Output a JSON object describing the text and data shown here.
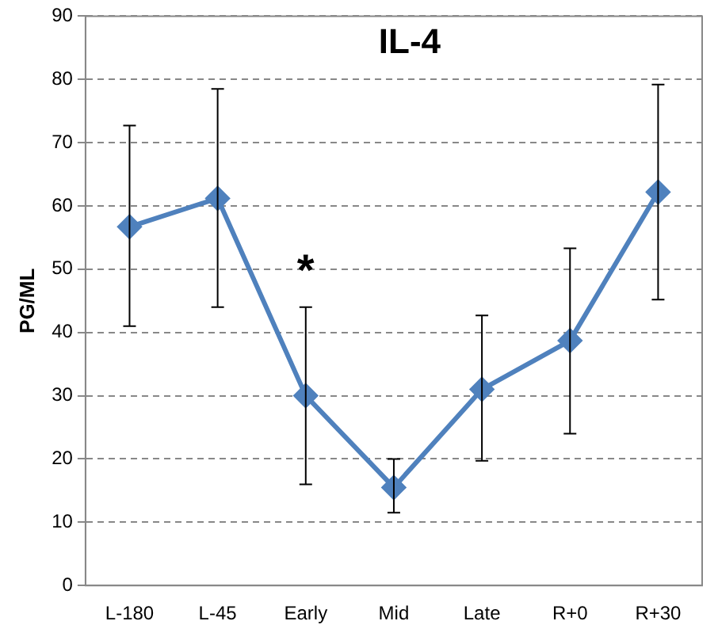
{
  "chart_data": {
    "type": "line",
    "title": "IL-4",
    "ylabel": "PG/ML",
    "categories": [
      "L-180",
      "L-45",
      "Early",
      "Mid",
      "Late",
      "R+0",
      "R+30"
    ],
    "series": [
      {
        "color": "#4f81bd",
        "values": [
          56.7,
          61.2,
          30,
          15.5,
          31,
          38.7,
          62.2
        ],
        "errors": [
          [
            41,
            72.7
          ],
          [
            44,
            78.5
          ],
          [
            16,
            44
          ],
          [
            11.5,
            20
          ],
          [
            19.7,
            42.7
          ],
          [
            24,
            53.3
          ],
          [
            45.2,
            79.2
          ]
        ]
      }
    ],
    "ylim": [
      0,
      90
    ],
    "yticks": [
      0,
      10,
      20,
      30,
      40,
      50,
      60,
      70,
      80,
      90
    ],
    "grid": "y",
    "legend": false,
    "marker": "diamond",
    "line_style": "solid",
    "annotations": [
      "*"
    ]
  }
}
